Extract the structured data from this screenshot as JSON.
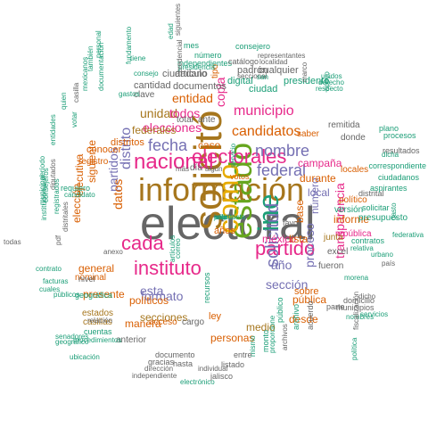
{
  "palette": {
    "teal": "#1b9e77",
    "orange": "#d95f02",
    "purple": "#7570b3",
    "magenta": "#e7298a",
    "green": "#66a61e",
    "gold": "#e6ab02",
    "brown": "#a6761d",
    "gray": "#666666"
  },
  "words": [
    {
      "text": "electoral",
      "color": "gray"
    },
    {
      "text": "información",
      "color": "brown"
    },
    {
      "text": "solicitó",
      "color": "brown"
    },
    {
      "text": "estado",
      "color": "green"
    },
    {
      "text": "como",
      "color": "gold"
    },
    {
      "text": "ine",
      "color": "teal"
    },
    {
      "text": "nacional",
      "color": "magenta"
    },
    {
      "text": "electorales",
      "color": "magenta"
    },
    {
      "text": "instituto",
      "color": "magenta"
    },
    {
      "text": "cada",
      "color": "magenta"
    },
    {
      "text": "partido",
      "color": "magenta"
    },
    {
      "text": "solicitud",
      "color": "purple"
    },
    {
      "text": "federal",
      "color": "purple"
    },
    {
      "text": "nombre",
      "color": "purple"
    },
    {
      "text": "fecha",
      "color": "purple"
    },
    {
      "text": "proceso",
      "color": "purple"
    },
    {
      "text": "distrito",
      "color": "purple"
    },
    {
      "text": "candidatos",
      "color": "orange"
    },
    {
      "text": "municipio",
      "color": "magenta"
    },
    {
      "text": "copia",
      "color": "magenta"
    },
    {
      "text": "entidad",
      "color": "orange"
    },
    {
      "text": "unidad",
      "color": "brown"
    },
    {
      "text": "todos",
      "color": "magenta"
    },
    {
      "text": "elecciones",
      "color": "magenta"
    },
    {
      "text": "formato",
      "color": "purple"
    },
    {
      "text": "esta",
      "color": "purple"
    },
    {
      "text": "sección",
      "color": "purple"
    },
    {
      "text": "año",
      "color": "purple"
    },
    {
      "text": "número",
      "color": "purple"
    },
    {
      "text": "transparencia",
      "color": "magenta"
    },
    {
      "text": "partidos",
      "color": "purple"
    },
    {
      "text": "federales",
      "color": "brown"
    },
    {
      "text": "datos",
      "color": "orange"
    },
    {
      "text": "méxico",
      "color": "magenta"
    },
    {
      "text": "lista",
      "color": "orange"
    },
    {
      "text": "local",
      "color": "purple"
    },
    {
      "text": "políticos",
      "color": "orange"
    },
    {
      "text": "secciones",
      "color": "brown"
    },
    {
      "text": "medio",
      "color": "brown"
    },
    {
      "text": "personas",
      "color": "orange"
    },
    {
      "text": "pública",
      "color": "orange"
    },
    {
      "text": "desde",
      "color": "orange"
    },
    {
      "text": "general",
      "color": "orange"
    },
    {
      "text": "presente",
      "color": "orange"
    },
    {
      "text": "caso",
      "color": "orange"
    },
    {
      "text": "campaña",
      "color": "magenta"
    },
    {
      "text": "durante",
      "color": "orange"
    },
    {
      "text": "registro",
      "color": "orange"
    },
    {
      "text": "conocer",
      "color": "orange"
    },
    {
      "text": "siguiente",
      "color": "orange"
    },
    {
      "text": "ejecutiva",
      "color": "orange"
    },
    {
      "text": "elección",
      "color": "orange"
    },
    {
      "text": "distritos",
      "color": "orange"
    },
    {
      "text": "informe",
      "color": "orange"
    },
    {
      "text": "político",
      "color": "orange"
    },
    {
      "text": "república",
      "color": "magenta"
    },
    {
      "text": "manera",
      "color": "orange"
    },
    {
      "text": "junta",
      "color": "brown"
    },
    {
      "text": "sobre",
      "color": "orange"
    },
    {
      "text": "años",
      "color": "orange"
    },
    {
      "text": "base",
      "color": "orange"
    },
    {
      "text": "ley",
      "color": "orange"
    },
    {
      "text": "acceso",
      "color": "orange"
    },
    {
      "text": "cargo",
      "color": "gray"
    },
    {
      "text": "nominal",
      "color": "orange"
    },
    {
      "text": "estados",
      "color": "brown"
    },
    {
      "text": "casillas",
      "color": "brown"
    },
    {
      "text": "anterior",
      "color": "gray"
    },
    {
      "text": "donde",
      "color": "gray"
    },
    {
      "text": "locales",
      "color": "orange"
    },
    {
      "text": "remitida",
      "color": "gray"
    },
    {
      "text": "saber",
      "color": "orange"
    },
    {
      "text": "digital",
      "color": "teal"
    },
    {
      "text": "ciudad",
      "color": "teal"
    },
    {
      "text": "padrón",
      "color": "gray"
    },
    {
      "text": "cualquier",
      "color": "gray"
    },
    {
      "text": "presidente",
      "color": "teal"
    },
    {
      "text": "documentos",
      "color": "gray"
    },
    {
      "text": "cantidad",
      "color": "gray"
    },
    {
      "text": "ciudadano",
      "color": "gray"
    },
    {
      "text": "artículo",
      "color": "gray"
    },
    {
      "text": "clave",
      "color": "gray"
    },
    {
      "text": "total",
      "color": "gray"
    },
    {
      "text": "ante",
      "color": "gray"
    },
    {
      "text": "tipo",
      "color": "orange"
    },
    {
      "text": "día",
      "color": "gray"
    },
    {
      "text": "más",
      "color": "gray"
    },
    {
      "text": "algún",
      "color": "gray"
    },
    {
      "text": "servicio",
      "color": "teal"
    },
    {
      "text": "votos",
      "color": "orange"
    },
    {
      "text": "favor",
      "color": "gray"
    },
    {
      "text": "versión",
      "color": "teal"
    },
    {
      "text": "excel",
      "color": "gray"
    },
    {
      "text": "fueron",
      "color": "gray"
    },
    {
      "text": "presupuesto",
      "color": "teal"
    },
    {
      "text": "gasto",
      "color": "teal"
    },
    {
      "text": "solicitar",
      "color": "teal"
    },
    {
      "text": "distrital",
      "color": "gray"
    },
    {
      "text": "aspirantes",
      "color": "teal"
    },
    {
      "text": "ciudadanos",
      "color": "teal"
    },
    {
      "text": "correspondiente",
      "color": "teal"
    },
    {
      "text": "resultados",
      "color": "gray"
    },
    {
      "text": "procesos",
      "color": "teal"
    },
    {
      "text": "dicha",
      "color": "teal"
    },
    {
      "text": "plano",
      "color": "teal"
    },
    {
      "text": "municipios",
      "color": "gray"
    },
    {
      "text": "parte",
      "color": "gray"
    },
    {
      "text": "domicilio",
      "color": "gray"
    },
    {
      "text": "dicho",
      "color": "gray"
    },
    {
      "text": "servicios",
      "color": "teal"
    },
    {
      "text": "nombres",
      "color": "teal"
    },
    {
      "text": "fiscalización",
      "color": "gray"
    },
    {
      "text": "acuerdo",
      "color": "gray"
    },
    {
      "text": "archivo",
      "color": "teal"
    },
    {
      "text": "público",
      "color": "teal"
    },
    {
      "text": "archivos",
      "color": "gray"
    },
    {
      "text": "proporcione",
      "color": "teal"
    },
    {
      "text": "mismo",
      "color": "teal"
    },
    {
      "text": "monto",
      "color": "teal"
    },
    {
      "text": "listado",
      "color": "gray"
    },
    {
      "text": "entre",
      "color": "gray"
    },
    {
      "text": "documento",
      "color": "gray"
    },
    {
      "text": "gracias",
      "color": "gray"
    },
    {
      "text": "hasta",
      "color": "gray"
    },
    {
      "text": "dirección",
      "color": "gray"
    },
    {
      "text": "individual",
      "color": "gray"
    },
    {
      "text": "independiente",
      "color": "gray"
    },
    {
      "text": "jalisco",
      "color": "gray"
    },
    {
      "text": "electrónico",
      "color": "teal"
    },
    {
      "text": "ubicación",
      "color": "teal"
    },
    {
      "text": "procedimientos",
      "color": "teal"
    },
    {
      "text": "cuentas",
      "color": "teal"
    },
    {
      "text": "relación",
      "color": "gray"
    },
    {
      "text": "geográfico",
      "color": "teal"
    },
    {
      "text": "senadores",
      "color": "teal"
    },
    {
      "text": "cuales",
      "color": "teal"
    },
    {
      "text": "públicos",
      "color": "teal"
    },
    {
      "text": "facturas",
      "color": "teal"
    },
    {
      "text": "contrato",
      "color": "teal"
    },
    {
      "text": "geográfica",
      "color": "teal"
    },
    {
      "text": "nivel",
      "color": "gray"
    },
    {
      "text": "anexo",
      "color": "gray"
    },
    {
      "text": "todas",
      "color": "gray"
    },
    {
      "text": "pdf",
      "color": "gray"
    },
    {
      "text": "distritales",
      "color": "gray"
    },
    {
      "text": "candidato",
      "color": "teal"
    },
    {
      "text": "requiero",
      "color": "teal"
    },
    {
      "text": "votar",
      "color": "teal"
    },
    {
      "text": "casilla",
      "color": "gray"
    },
    {
      "text": "mexicanos",
      "color": "teal"
    },
    {
      "text": "período",
      "color": "teal"
    },
    {
      "text": "diputados",
      "color": "gray"
    },
    {
      "text": "consejeros",
      "color": "teal"
    },
    {
      "text": "municipal",
      "color": "teal"
    },
    {
      "text": "institucional",
      "color": "teal"
    },
    {
      "text": "registrados",
      "color": "teal"
    },
    {
      "text": "entidades",
      "color": "teal"
    },
    {
      "text": "quien",
      "color": "teal"
    },
    {
      "text": "personal",
      "color": "teal"
    },
    {
      "text": "también",
      "color": "teal"
    },
    {
      "text": "documentación",
      "color": "teal"
    },
    {
      "text": "gastos",
      "color": "teal"
    },
    {
      "text": "consejo",
      "color": "teal"
    },
    {
      "text": "fundamento",
      "color": "teal"
    },
    {
      "text": "tiene",
      "color": "teal"
    },
    {
      "text": "edad",
      "color": "teal"
    },
    {
      "text": "siguientes",
      "color": "gray"
    },
    {
      "text": "mes",
      "color": "teal"
    },
    {
      "text": "consejero",
      "color": "teal"
    },
    {
      "text": "número",
      "color": "teal"
    },
    {
      "text": "representantes",
      "color": "gray"
    },
    {
      "text": "independientes",
      "color": "teal"
    },
    {
      "text": "catálogo",
      "color": "gray"
    },
    {
      "text": "presidencia",
      "color": "teal"
    },
    {
      "text": "credencial",
      "color": "gray"
    },
    {
      "text": "localidad",
      "color": "gray"
    },
    {
      "text": "seccional",
      "color": "gray"
    },
    {
      "text": "san",
      "color": "teal"
    },
    {
      "text": "marco",
      "color": "gray"
    },
    {
      "text": "unidos",
      "color": "teal"
    },
    {
      "text": "derecho",
      "color": "teal"
    },
    {
      "text": "respecto",
      "color": "teal"
    },
    {
      "text": "apoyo",
      "color": "teal"
    },
    {
      "text": "contratos",
      "color": "teal"
    },
    {
      "text": "relativa",
      "color": "teal"
    },
    {
      "text": "federativa",
      "color": "teal"
    },
    {
      "text": "urbano",
      "color": "teal"
    },
    {
      "text": "país",
      "color": "gray"
    },
    {
      "text": "morena",
      "color": "teal"
    },
    {
      "text": "política",
      "color": "teal"
    },
    {
      "text": "recursos",
      "color": "teal"
    },
    {
      "text": "artículos",
      "color": "teal"
    },
    {
      "text": "correo",
      "color": "teal"
    },
    {
      "text": "respuesta",
      "color": "teal"
    },
    {
      "text": "julio",
      "color": "teal"
    },
    {
      "text": "este",
      "color": "teal"
    },
    {
      "text": "solicito",
      "color": "teal"
    }
  ]
}
